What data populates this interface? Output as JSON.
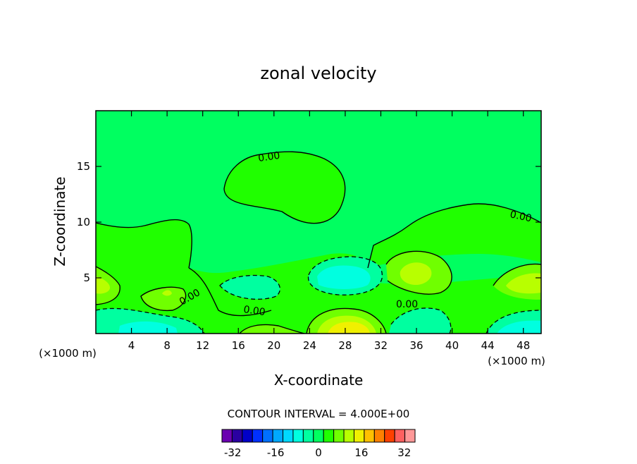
{
  "chart_data": {
    "type": "contour",
    "title": "zonal velocity",
    "xlabel": "X-coordinate",
    "ylabel": "Z-coordinate",
    "x_unit": "(×1000 m)",
    "x_unit_right": "(×1000 m)",
    "xlim": [
      0,
      50
    ],
    "ylim": [
      0,
      20
    ],
    "x_ticks": [
      4,
      8,
      12,
      16,
      20,
      24,
      28,
      32,
      36,
      40,
      44,
      48
    ],
    "y_ticks": [
      5,
      10,
      15
    ],
    "contour_interval_label": "CONTOUR INTERVAL = 4.000E+00",
    "contour_labels": [
      "0.00",
      "0.00",
      "0.00",
      "0.00",
      "0.00"
    ],
    "colorbar": {
      "tick_labels": [
        "-32",
        "-16",
        "0",
        "16",
        "32"
      ],
      "tick_values": [
        -32,
        -16,
        0,
        16,
        32
      ],
      "levels": [
        -36,
        -32,
        -28,
        -24,
        -20,
        -16,
        -12,
        -8,
        -4,
        0,
        4,
        8,
        12,
        16,
        20,
        24,
        28,
        32,
        36
      ],
      "colors": [
        "#6a00b0",
        "#2a00a0",
        "#0000c8",
        "#0030ff",
        "#0070ff",
        "#00a8ff",
        "#00d8ff",
        "#00ffe0",
        "#00ffa0",
        "#00ff60",
        "#20ff00",
        "#70ff00",
        "#b8ff00",
        "#f0f000",
        "#ffc000",
        "#ff8000",
        "#ff4000",
        "#ff6060",
        "#ff9898"
      ]
    },
    "regions": [
      {
        "x": 2,
        "z": 4.5,
        "value": 6
      },
      {
        "x": 8,
        "z": 3.5,
        "value": 4
      },
      {
        "x": 18,
        "z": 13,
        "value": 2
      },
      {
        "x": 17,
        "z": 4.5,
        "value": -4
      },
      {
        "x": 26,
        "z": 4.8,
        "value": -8
      },
      {
        "x": 28,
        "z": 0.5,
        "value": 14
      },
      {
        "x": 35,
        "z": 5.2,
        "value": 6
      },
      {
        "x": 46,
        "z": 4.6,
        "value": 8
      },
      {
        "x": 46,
        "z": 1.0,
        "value": -10
      },
      {
        "x": 4,
        "z": 0.8,
        "value": -8
      },
      {
        "x": 10,
        "z": 0.8,
        "value": -6
      }
    ]
  }
}
